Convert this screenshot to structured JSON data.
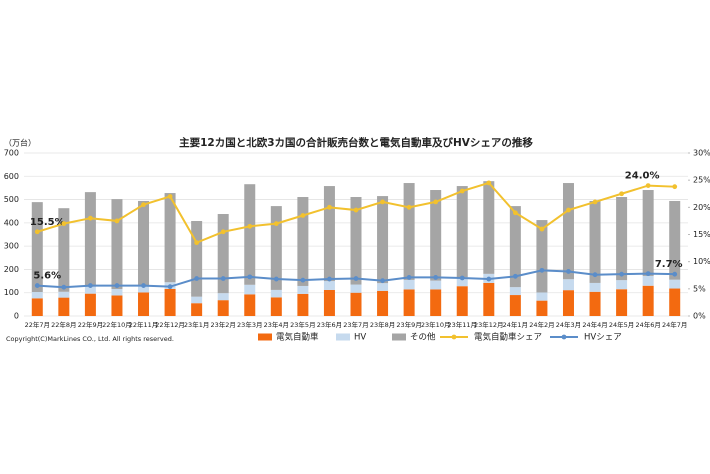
{
  "chart_data": {
    "type": "bar",
    "stacked": true,
    "title": "主要12カ国と北欧3カ国の合計販売台数と電気自動車及びHVシェアの推移",
    "y_label": "（万台）",
    "footnote": "Copyright(C)MarkLines CO., Ltd. All rights reserved.",
    "categories": [
      "22年7月",
      "22年8月",
      "22年9月",
      "22年10月",
      "22年11月",
      "22年12月",
      "23年1月",
      "23年2月",
      "23年3月",
      "23年4月",
      "23年5月",
      "23年6月",
      "23年7月",
      "23年8月",
      "23年9月",
      "23年10月",
      "23年11月",
      "23年12月",
      "24年1月",
      "24年2月",
      "24年3月",
      "24年4月",
      "24年5月",
      "24年6月",
      "24年7月"
    ],
    "ylim": [
      0,
      700
    ],
    "yticks": [
      0,
      100,
      200,
      300,
      400,
      500,
      600,
      700
    ],
    "y2lim": [
      0,
      30
    ],
    "y2ticks": [
      {
        "value": 0,
        "label": "0%"
      },
      {
        "value": 5,
        "label": "5%"
      },
      {
        "value": 10,
        "label": "10%"
      },
      {
        "value": 15,
        "label": "15%"
      },
      {
        "value": 20,
        "label": "20%"
      },
      {
        "value": 25,
        "label": "25%"
      },
      {
        "value": 30,
        "label": "30%"
      }
    ],
    "grid": true,
    "series": [
      {
        "name": "電気自動車",
        "type": "bar",
        "color": "#f36a10",
        "values": [
          76,
          79,
          96,
          88,
          101,
          116,
          55,
          68,
          93,
          80,
          95,
          112,
          100,
          108,
          114,
          114,
          128,
          142,
          90,
          66,
          111,
          104,
          115,
          130,
          118
        ]
      },
      {
        "name": "HV",
        "type": "bar",
        "color": "#c6daee",
        "values": [
          27,
          25,
          30,
          28,
          28,
          29,
          28,
          30,
          41,
          32,
          34,
          38,
          35,
          33,
          41,
          38,
          39,
          39,
          34,
          35,
          47,
          38,
          39,
          42,
          38
        ]
      },
      {
        "name": "その他",
        "type": "bar",
        "color": "#a5a5a5",
        "values": [
          386,
          359,
          406,
          386,
          365,
          383,
          325,
          340,
          432,
          360,
          382,
          408,
          376,
          374,
          416,
          389,
          391,
          398,
          348,
          311,
          413,
          352,
          357,
          369,
          338
        ]
      },
      {
        "name": "電気自動車シェア",
        "type": "line",
        "axis": "y2",
        "color": "#f2c12e",
        "values": [
          15.5,
          17,
          18,
          17.5,
          20.5,
          22,
          13.5,
          15.5,
          16.5,
          17,
          18.5,
          20,
          19.5,
          21,
          20,
          21,
          23,
          24.5,
          19,
          16,
          19.5,
          21,
          22.5,
          24.0,
          23.8
        ],
        "value_labels": [
          "15.5%",
          null,
          null,
          null,
          null,
          null,
          null,
          null,
          null,
          null,
          null,
          null,
          null,
          null,
          null,
          null,
          null,
          null,
          null,
          null,
          null,
          null,
          null,
          "24.0%",
          null
        ]
      },
      {
        "name": "HVシェア",
        "type": "line",
        "axis": "y2",
        "color": "#5b8dc9",
        "values": [
          5.6,
          5.3,
          5.6,
          5.6,
          5.6,
          5.4,
          6.9,
          6.9,
          7.2,
          6.8,
          6.6,
          6.8,
          6.9,
          6.5,
          7.1,
          7.1,
          7.0,
          6.8,
          7.3,
          8.4,
          8.2,
          7.6,
          7.7,
          7.8,
          7.7
        ],
        "value_labels": [
          "5.6%",
          null,
          null,
          null,
          null,
          null,
          null,
          null,
          null,
          null,
          null,
          null,
          null,
          null,
          null,
          null,
          null,
          null,
          null,
          null,
          null,
          null,
          null,
          null,
          "7.7%"
        ]
      }
    ]
  }
}
